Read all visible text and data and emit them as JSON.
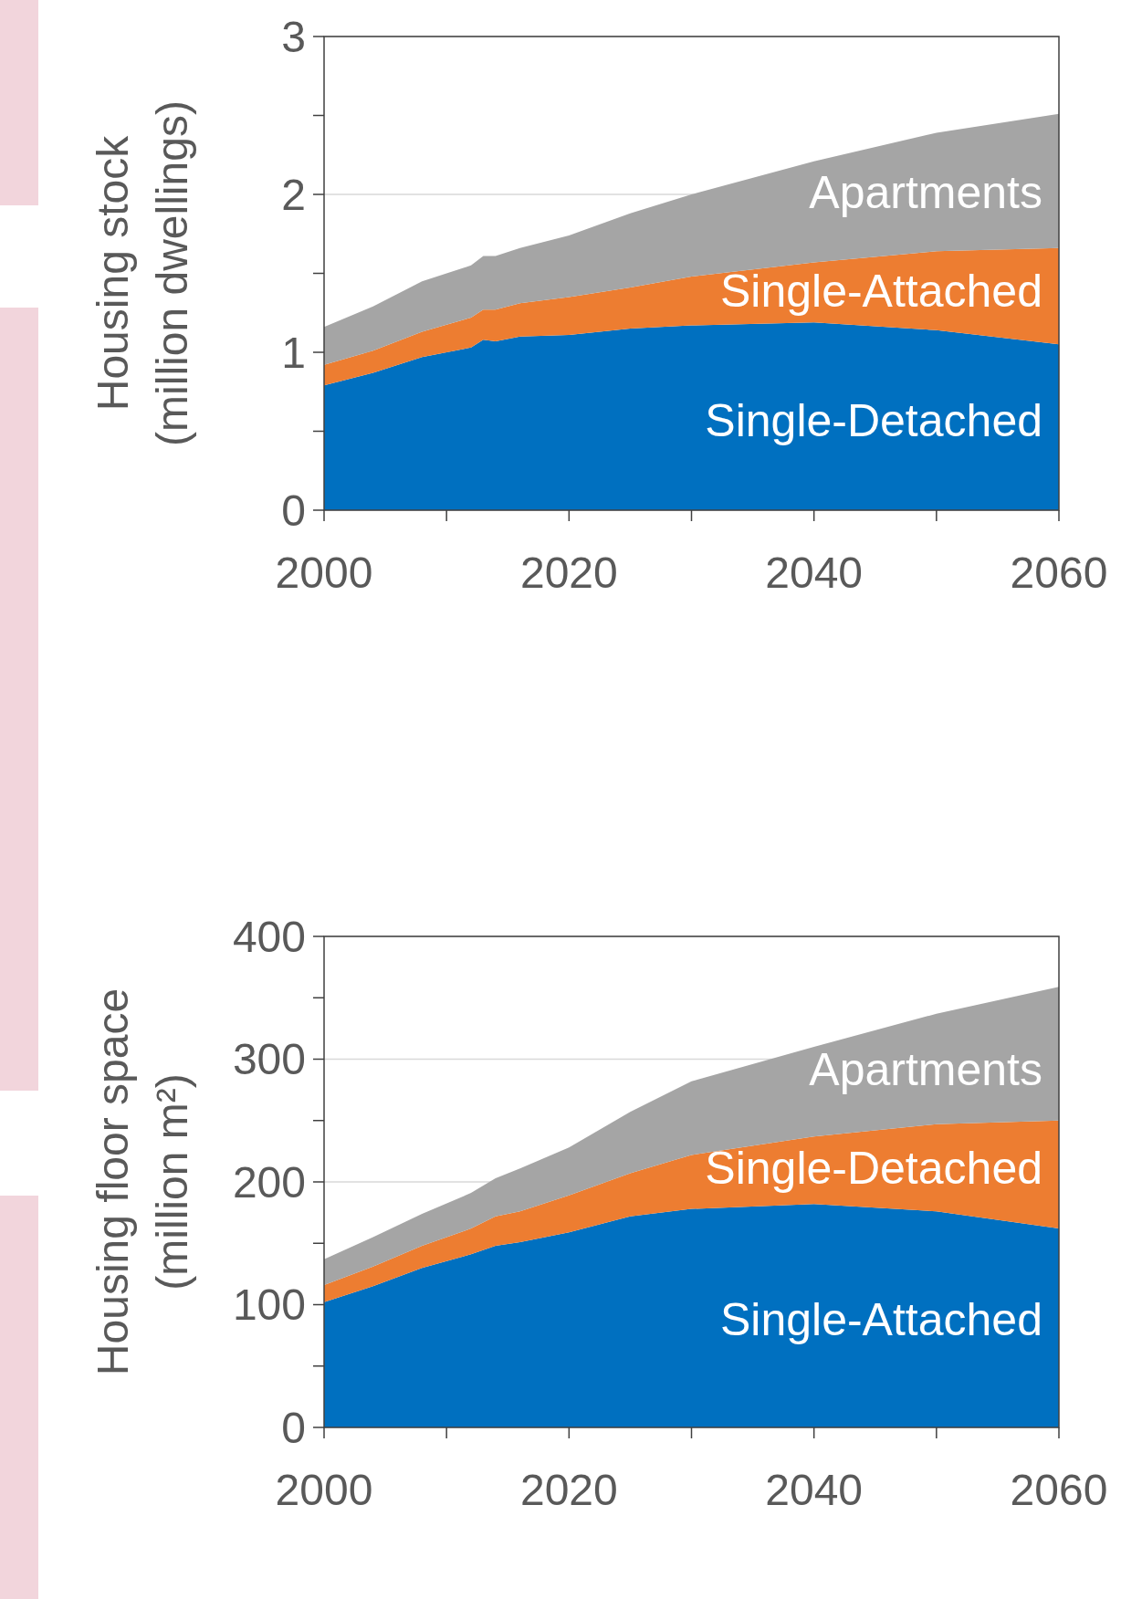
{
  "chart_data": [
    {
      "type": "area",
      "stacked": true,
      "ylabel": "Housing stock (million dwellings)",
      "x": [
        2000,
        2004,
        2008,
        2012,
        2013,
        2014,
        2016,
        2020,
        2025,
        2030,
        2040,
        2050,
        2060
      ],
      "xlim": [
        2000,
        2060
      ],
      "xticks": [
        2000,
        {
          "value": 2010,
          "label": null
        },
        2020,
        {
          "value": 2030,
          "label": null
        },
        2040,
        {
          "value": 2050,
          "label": null
        },
        2060
      ],
      "ylim": [
        0,
        3
      ],
      "yticks": [
        0,
        {
          "value": 0.5,
          "label": null
        },
        1,
        {
          "value": 1.5,
          "label": null
        },
        2,
        {
          "value": 2.5,
          "label": null
        },
        3
      ],
      "grid": "y",
      "series": [
        {
          "name": "Single-Detached",
          "color": "#0070c0",
          "values": [
            0.79,
            0.87,
            0.97,
            1.03,
            1.08,
            1.07,
            1.1,
            1.11,
            1.15,
            1.17,
            1.19,
            1.14,
            1.05
          ]
        },
        {
          "name": "Single-Attached",
          "color": "#ed7d31",
          "values": [
            0.13,
            0.14,
            0.16,
            0.19,
            0.19,
            0.2,
            0.21,
            0.24,
            0.26,
            0.31,
            0.38,
            0.5,
            0.61
          ]
        },
        {
          "name": "Apartments",
          "color": "#a5a5a5",
          "values": [
            0.24,
            0.28,
            0.32,
            0.33,
            0.34,
            0.34,
            0.35,
            0.39,
            0.47,
            0.52,
            0.64,
            0.75,
            0.85
          ]
        }
      ]
    },
    {
      "type": "area",
      "stacked": true,
      "ylabel": "Housing floor space (million m²)",
      "x": [
        2000,
        2004,
        2008,
        2012,
        2014,
        2016,
        2020,
        2025,
        2030,
        2040,
        2050,
        2060
      ],
      "xlim": [
        2000,
        2060
      ],
      "xticks": [
        2000,
        {
          "value": 2010,
          "label": null
        },
        2020,
        {
          "value": 2030,
          "label": null
        },
        2040,
        {
          "value": 2050,
          "label": null
        },
        2060
      ],
      "ylim": [
        0,
        400
      ],
      "yticks": [
        0,
        {
          "value": 50,
          "label": null
        },
        100,
        {
          "value": 150,
          "label": null
        },
        200,
        {
          "value": 250,
          "label": null
        },
        300,
        {
          "value": 350,
          "label": null
        },
        400
      ],
      "grid": "y",
      "series": [
        {
          "name": "Single-Attached",
          "color": "#0070c0",
          "values": [
            102,
            115,
            130,
            141,
            148,
            151,
            159,
            172,
            178,
            182,
            176,
            162
          ]
        },
        {
          "name": "Single-Detached",
          "color": "#ed7d31",
          "values": [
            14,
            16,
            18,
            21,
            24,
            25,
            30,
            35,
            44,
            55,
            71,
            88
          ]
        },
        {
          "name": "Apartments",
          "color": "#a5a5a5",
          "values": [
            21,
            24,
            26,
            29,
            31,
            35,
            39,
            50,
            60,
            73,
            90,
            109
          ]
        }
      ]
    }
  ]
}
